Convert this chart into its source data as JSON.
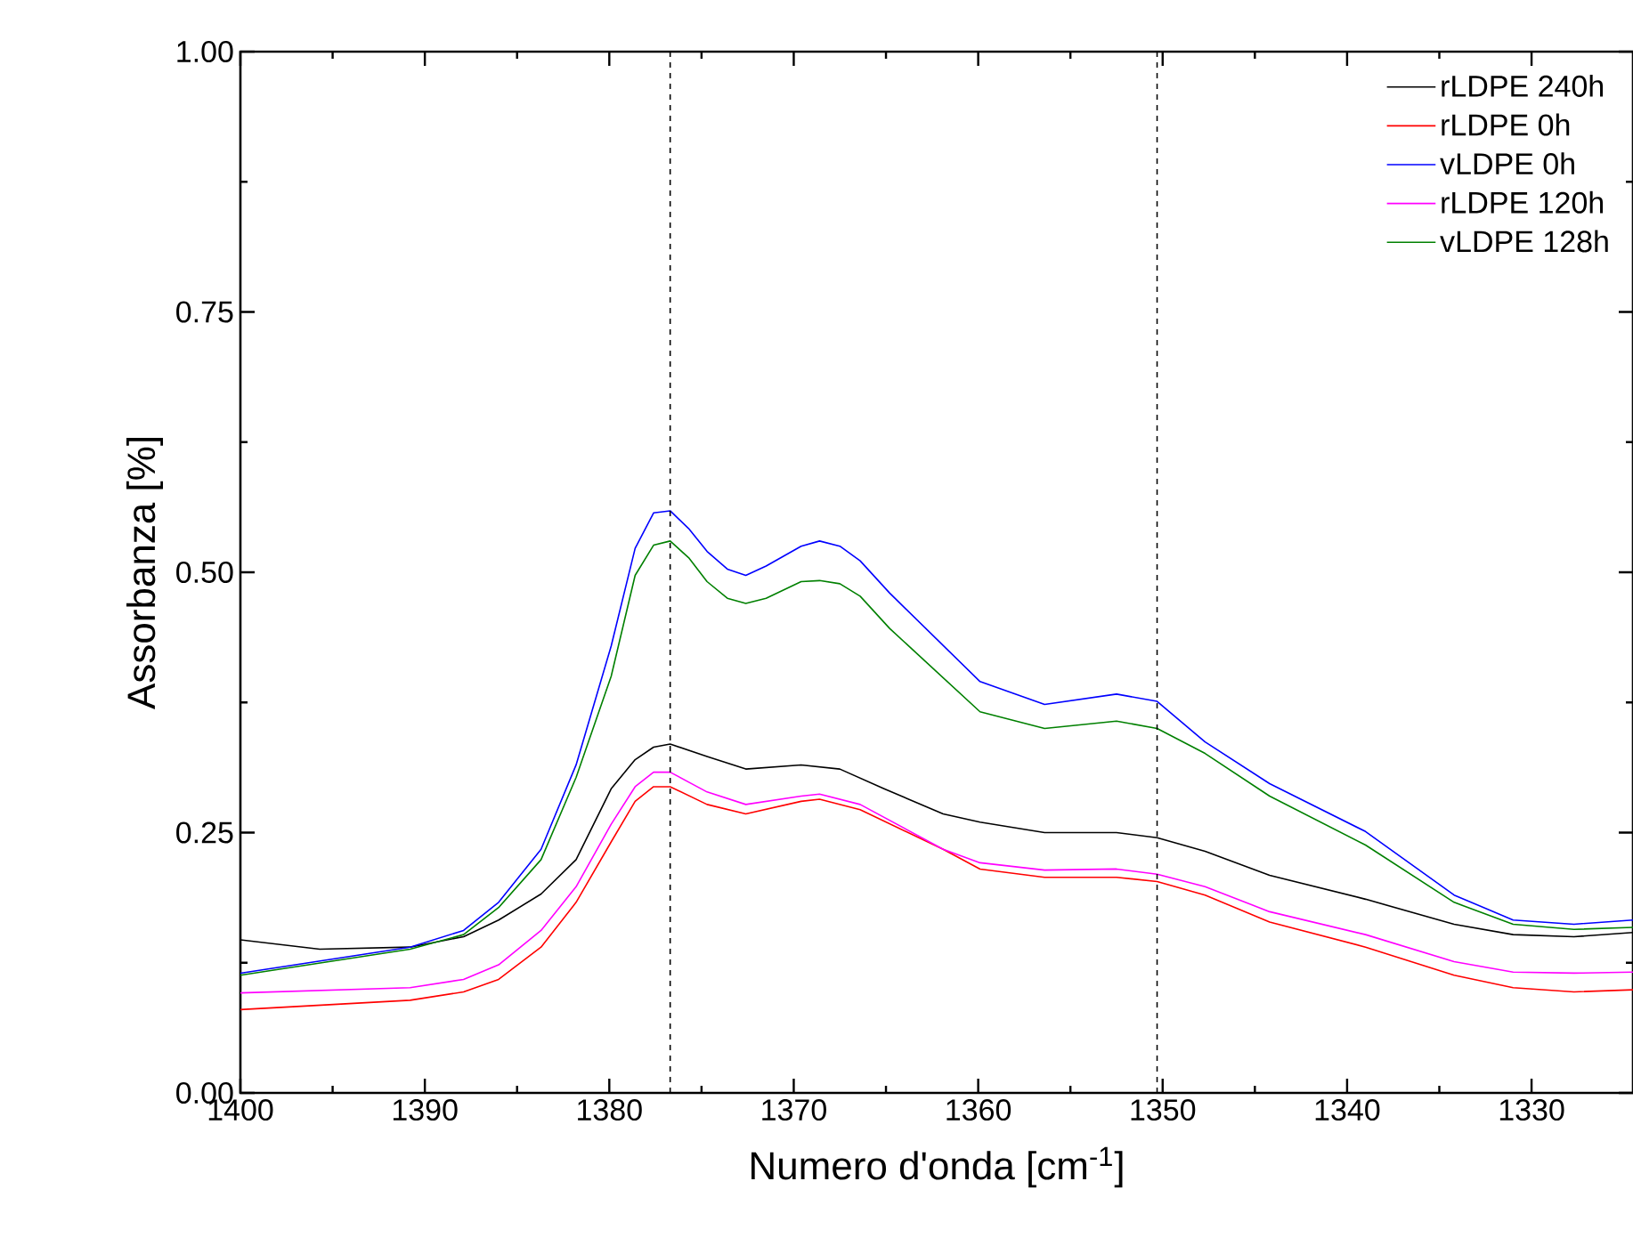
{
  "chart_data": {
    "type": "line",
    "xlabel": "Numero d'onda [cm$^{-1}$]",
    "ylabel": "Assorbanza [%]",
    "xlim": [
      1400,
      1324.5
    ],
    "ylim": [
      0,
      1
    ],
    "xticks": [
      1400,
      1390,
      1380,
      1370,
      1360,
      1350,
      1340,
      1330
    ],
    "yticks": [
      {
        "value": 0,
        "label": "0.00"
      },
      {
        "value": 0.25,
        "label": "0.25"
      },
      {
        "value": 0.5,
        "label": "0.50"
      },
      {
        "value": 0.75,
        "label": "0.75"
      },
      {
        "value": 1,
        "label": "1.00"
      }
    ],
    "legend": "top right",
    "grid": false,
    "marker": "none",
    "line_style": "solid",
    "ref_lines": [
      {
        "axis": "x",
        "value": 1376.7,
        "color": "#000000",
        "line_style": "dashed"
      },
      {
        "axis": "x",
        "value": 1350.3,
        "color": "#000000",
        "line_style": "dashed"
      }
    ],
    "series": [
      {
        "name": "rLDPE 240h",
        "color": "#000000",
        "x": [
          1400,
          1395.7,
          1390.8,
          1387.9,
          1386.0,
          1383.7,
          1381.8,
          1379.9,
          1378.6,
          1377.6,
          1376.7,
          1374.7,
          1372.6,
          1369.6,
          1367.5,
          1365.1,
          1361.9,
          1359.9,
          1356.4,
          1352.5,
          1350.3,
          1347.7,
          1344.2,
          1339.0,
          1334.2,
          1331.0,
          1327.7,
          1324.5
        ],
        "values": [
          0.147,
          0.138,
          0.14,
          0.15,
          0.166,
          0.191,
          0.224,
          0.292,
          0.32,
          0.332,
          0.335,
          0.323,
          0.311,
          0.315,
          0.311,
          0.292,
          0.268,
          0.26,
          0.25,
          0.25,
          0.245,
          0.232,
          0.209,
          0.186,
          0.162,
          0.152,
          0.15,
          0.154
        ]
      },
      {
        "name": "rLDPE 0h",
        "color": "#ff0000",
        "x": [
          1400,
          1390.8,
          1387.9,
          1386.0,
          1383.7,
          1381.8,
          1379.9,
          1378.6,
          1377.6,
          1376.7,
          1374.7,
          1372.6,
          1369.6,
          1368.6,
          1366.4,
          1361.9,
          1359.9,
          1356.4,
          1352.5,
          1350.3,
          1347.7,
          1344.2,
          1339.0,
          1334.2,
          1331.0,
          1327.7,
          1324.5
        ],
        "values": [
          0.08,
          0.089,
          0.097,
          0.109,
          0.14,
          0.183,
          0.241,
          0.28,
          0.294,
          0.294,
          0.277,
          0.268,
          0.28,
          0.282,
          0.272,
          0.234,
          0.215,
          0.207,
          0.207,
          0.203,
          0.19,
          0.164,
          0.14,
          0.113,
          0.101,
          0.097,
          0.099
        ]
      },
      {
        "name": "vLDPE 0h",
        "color": "#0000ff",
        "x": [
          1400,
          1390.8,
          1387.9,
          1386.0,
          1383.7,
          1381.8,
          1379.9,
          1378.6,
          1377.6,
          1376.7,
          1375.7,
          1374.7,
          1373.6,
          1372.6,
          1371.5,
          1369.6,
          1368.6,
          1367.5,
          1366.4,
          1364.8,
          1359.9,
          1356.4,
          1352.5,
          1350.3,
          1347.7,
          1344.2,
          1339.0,
          1334.2,
          1331.0,
          1327.7,
          1324.5
        ],
        "values": [
          0.115,
          0.14,
          0.156,
          0.183,
          0.234,
          0.315,
          0.429,
          0.523,
          0.557,
          0.559,
          0.542,
          0.52,
          0.503,
          0.497,
          0.506,
          0.525,
          0.53,
          0.525,
          0.511,
          0.48,
          0.395,
          0.373,
          0.383,
          0.376,
          0.337,
          0.297,
          0.251,
          0.19,
          0.166,
          0.162,
          0.166
        ]
      },
      {
        "name": "rLDPE 120h",
        "color": "#ff00ff",
        "x": [
          1400,
          1390.8,
          1387.9,
          1386.0,
          1383.7,
          1381.8,
          1379.9,
          1378.6,
          1377.6,
          1376.7,
          1374.7,
          1372.6,
          1369.6,
          1368.6,
          1366.4,
          1361.9,
          1359.9,
          1356.4,
          1352.5,
          1350.3,
          1347.7,
          1344.2,
          1339.0,
          1334.2,
          1331.0,
          1327.7,
          1324.5
        ],
        "values": [
          0.096,
          0.101,
          0.109,
          0.123,
          0.156,
          0.198,
          0.258,
          0.294,
          0.308,
          0.308,
          0.289,
          0.277,
          0.285,
          0.287,
          0.277,
          0.234,
          0.221,
          0.214,
          0.215,
          0.21,
          0.198,
          0.174,
          0.152,
          0.126,
          0.116,
          0.115,
          0.116
        ]
      },
      {
        "name": "vLDPE 128h",
        "color": "#008000",
        "x": [
          1400,
          1390.8,
          1387.9,
          1386.0,
          1383.7,
          1381.8,
          1379.9,
          1378.6,
          1377.6,
          1376.7,
          1375.7,
          1374.7,
          1373.6,
          1372.6,
          1371.5,
          1369.6,
          1368.6,
          1367.5,
          1366.4,
          1364.8,
          1359.9,
          1356.4,
          1352.5,
          1350.3,
          1347.7,
          1344.2,
          1339.0,
          1334.2,
          1331.0,
          1327.7,
          1324.5
        ],
        "values": [
          0.113,
          0.138,
          0.152,
          0.178,
          0.224,
          0.303,
          0.4,
          0.497,
          0.526,
          0.53,
          0.514,
          0.491,
          0.475,
          0.47,
          0.475,
          0.491,
          0.492,
          0.489,
          0.477,
          0.446,
          0.366,
          0.35,
          0.357,
          0.35,
          0.326,
          0.285,
          0.238,
          0.183,
          0.162,
          0.157,
          0.159
        ]
      }
    ]
  }
}
